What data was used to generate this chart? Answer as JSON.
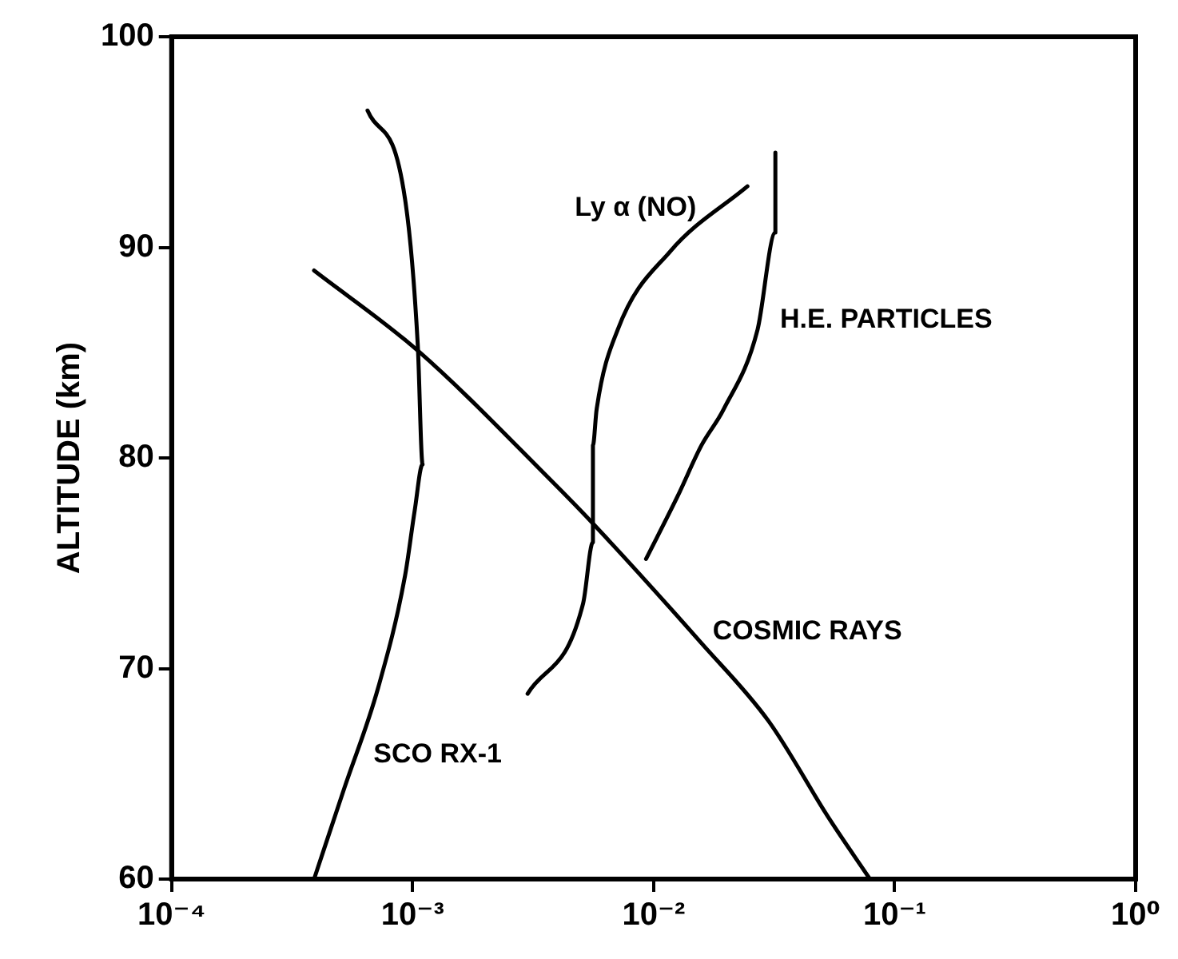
{
  "chart_data": {
    "type": "line",
    "ylabel": "ALTITUDE (km)",
    "log": "x",
    "grid": false,
    "legend": false,
    "marker": "none",
    "line_style": "solid",
    "xlim": [
      0.0001,
      1
    ],
    "ylim": [
      60,
      100
    ],
    "xticks": [
      {
        "value": 0.0001,
        "label": "10⁻⁴"
      },
      {
        "value": 0.001,
        "label": "10⁻³"
      },
      {
        "value": 0.01,
        "label": "10⁻²"
      },
      {
        "value": 0.1,
        "label": "10⁻¹"
      },
      {
        "value": 1,
        "label": "10⁰"
      }
    ],
    "yticks": [
      60,
      70,
      80,
      90,
      100
    ],
    "series": [
      {
        "name": "SCO RX-1",
        "color": "#000000",
        "x": [
          0.00065,
          0.00093,
          0.00105,
          0.0011,
          0.00102,
          0.00093,
          0.00072,
          0.00052,
          0.00039
        ],
        "values": [
          96.5,
          92.3,
          85.4,
          79.7,
          77.5,
          74.4,
          69.1,
          64.3,
          60
        ]
      },
      {
        "name": "COSMIC RAYS",
        "color": "#000000",
        "x": [
          0.00039,
          0.00105,
          0.0037,
          0.0058,
          0.0158,
          0.03,
          0.054,
          0.079
        ],
        "values": [
          88.9,
          85.1,
          79,
          76.7,
          71.2,
          67.5,
          62.8,
          60
        ]
      },
      {
        "name": "Ly α (NO)",
        "color": "#000000",
        "x": [
          0.0245,
          0.0117,
          0.0071,
          0.0058,
          0.0056,
          0.0056,
          0.0051,
          0.003
        ],
        "values": [
          92.9,
          89.8,
          86.1,
          82.3,
          80.6,
          76,
          73.1,
          68.8
        ]
      },
      {
        "name": "H.E. PARTICLES",
        "color": "#000000",
        "x": [
          0.032,
          0.032,
          0.027,
          0.0195,
          0.0158,
          0.0126,
          0.0093
        ],
        "values": [
          94.5,
          90.7,
          86.1,
          82.3,
          80.6,
          78.2,
          75.2
        ]
      }
    ]
  }
}
